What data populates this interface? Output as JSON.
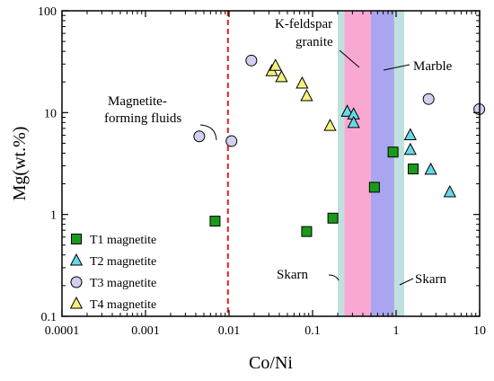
{
  "chart_data": {
    "type": "scatter",
    "xlabel": "Co/Ni",
    "ylabel": "Mg(wt.%)",
    "xscale": "log",
    "yscale": "log",
    "xlim": [
      0.0001,
      10
    ],
    "ylim": [
      0.1,
      100
    ],
    "x_ticks": [
      "0.0001",
      "0.001",
      "0.01",
      "0.1",
      "1",
      "10"
    ],
    "y_ticks": [
      "0.1",
      "1",
      "10",
      "100"
    ],
    "series": [
      {
        "name": "T1 magnetite",
        "marker": "square",
        "color": "#1a9a1a",
        "points": [
          [
            0.0068,
            0.86
          ],
          [
            0.085,
            0.68
          ],
          [
            0.175,
            0.92
          ],
          [
            0.55,
            1.85
          ],
          [
            0.92,
            4.1
          ],
          [
            1.6,
            2.8
          ]
        ]
      },
      {
        "name": "T2 magnetite",
        "marker": "triangle",
        "color": "#66d9e8",
        "points": [
          [
            0.26,
            10.2
          ],
          [
            0.31,
            9.6
          ],
          [
            0.31,
            7.9
          ],
          [
            1.48,
            6.0
          ],
          [
            1.48,
            4.3
          ],
          [
            2.6,
            2.75
          ],
          [
            4.4,
            1.65
          ]
        ]
      },
      {
        "name": "T3 magnetite",
        "marker": "circle",
        "color": "#d0cff0",
        "points": [
          [
            0.0044,
            5.85
          ],
          [
            0.0107,
            5.25
          ],
          [
            0.0185,
            32.5
          ],
          [
            2.45,
            13.6
          ],
          [
            9.9,
            10.8
          ]
        ]
      },
      {
        "name": "T4 magnetite",
        "marker": "triangle",
        "color": "#f5f07a",
        "points": [
          [
            0.0325,
            25.5
          ],
          [
            0.036,
            28.8
          ],
          [
            0.0425,
            22.3
          ],
          [
            0.075,
            19.3
          ],
          [
            0.085,
            14.5
          ],
          [
            0.162,
            7.4
          ]
        ]
      }
    ],
    "bands": [
      {
        "range": [
          0.2,
          0.24
        ],
        "color": "#bfe0de"
      },
      {
        "range": [
          0.24,
          0.5
        ],
        "color": "#f9a8d2"
      },
      {
        "range": [
          0.5,
          0.95
        ],
        "color": "#a9a6ef"
      },
      {
        "range": [
          0.95,
          1.25
        ],
        "color": "#bfe0de"
      }
    ],
    "threshold_line": {
      "x": 0.0097,
      "color": "#e02020"
    },
    "annotations": [
      {
        "text": "Magnetite-",
        "text2": "forming fluids"
      },
      {
        "text": "K-feldspar",
        "text2": "granite"
      },
      {
        "text": "Marble"
      },
      {
        "text": "Skarn"
      },
      {
        "text": "Skarn"
      }
    ],
    "legend": "bottom-left",
    "grid": false
  }
}
